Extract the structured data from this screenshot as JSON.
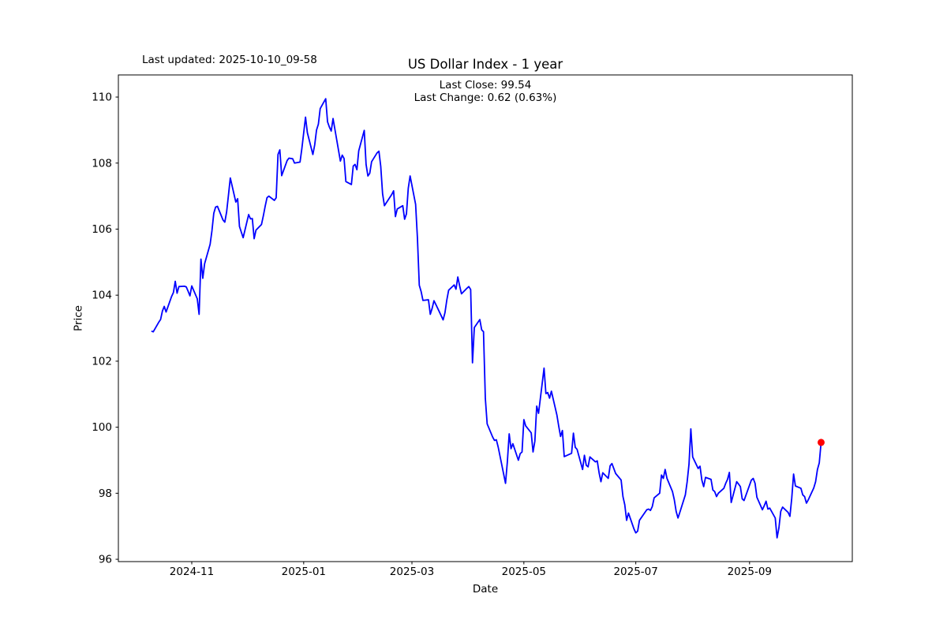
{
  "figure": {
    "title": "US Dollar Index - 1 year",
    "annotation": "Last updated: 2025-10-10_09-58",
    "subtitle_line1": "Last Close: 99.54",
    "subtitle_line2": "Last Change: 0.62 (0.63%)",
    "xlabel": "Date",
    "ylabel": "Price"
  },
  "chart_data": {
    "type": "line",
    "title": "US Dollar Index - 1 year",
    "xlabel": "Date",
    "ylabel": "Price",
    "last_close": 99.54,
    "last_change": "0.62 (0.63%)",
    "legend": "none",
    "grid": false,
    "line_color": "#0000ff",
    "marker_color": "#ff0000",
    "axis_color": "#000000",
    "xlim": [
      "2024-09-22",
      "2025-10-27"
    ],
    "ylim": [
      95.93,
      110.67
    ],
    "y_ticks": [
      96,
      98,
      100,
      102,
      104,
      106,
      108,
      110
    ],
    "x_ticks": [
      {
        "label": "2024-11",
        "date": "2024-11-01"
      },
      {
        "label": "2025-01",
        "date": "2025-01-01"
      },
      {
        "label": "2025-03",
        "date": "2025-03-01"
      },
      {
        "label": "2025-05",
        "date": "2025-05-01"
      },
      {
        "label": "2025-07",
        "date": "2025-07-01"
      },
      {
        "label": "2025-09",
        "date": "2025-09-01"
      }
    ],
    "series": [
      {
        "name": "US Dollar Index",
        "dates": [
          "2024-10-10",
          "2024-10-11",
          "2024-10-14",
          "2024-10-15",
          "2024-10-16",
          "2024-10-17",
          "2024-10-18",
          "2024-10-21",
          "2024-10-22",
          "2024-10-23",
          "2024-10-24",
          "2024-10-25",
          "2024-10-28",
          "2024-10-29",
          "2024-10-30",
          "2024-10-31",
          "2024-11-01",
          "2024-11-04",
          "2024-11-05",
          "2024-11-06",
          "2024-11-07",
          "2024-11-08",
          "2024-11-11",
          "2024-11-12",
          "2024-11-13",
          "2024-11-14",
          "2024-11-15",
          "2024-11-18",
          "2024-11-19",
          "2024-11-20",
          "2024-11-21",
          "2024-11-22",
          "2024-11-25",
          "2024-11-26",
          "2024-11-27",
          "2024-11-29",
          "2024-12-02",
          "2024-12-03",
          "2024-12-04",
          "2024-12-05",
          "2024-12-06",
          "2024-12-09",
          "2024-12-10",
          "2024-12-11",
          "2024-12-12",
          "2024-12-13",
          "2024-12-16",
          "2024-12-17",
          "2024-12-18",
          "2024-12-19",
          "2024-12-20",
          "2024-12-23",
          "2024-12-24",
          "2024-12-26",
          "2024-12-27",
          "2024-12-30",
          "2024-12-31",
          "2025-01-02",
          "2025-01-03",
          "2025-01-06",
          "2025-01-07",
          "2025-01-08",
          "2025-01-09",
          "2025-01-10",
          "2025-01-13",
          "2025-01-14",
          "2025-01-15",
          "2025-01-16",
          "2025-01-17",
          "2025-01-21",
          "2025-01-22",
          "2025-01-23",
          "2025-01-24",
          "2025-01-27",
          "2025-01-28",
          "2025-01-29",
          "2025-01-30",
          "2025-01-31",
          "2025-02-03",
          "2025-02-04",
          "2025-02-05",
          "2025-02-06",
          "2025-02-07",
          "2025-02-10",
          "2025-02-11",
          "2025-02-12",
          "2025-02-13",
          "2025-02-14",
          "2025-02-18",
          "2025-02-19",
          "2025-02-20",
          "2025-02-21",
          "2025-02-24",
          "2025-02-25",
          "2025-02-26",
          "2025-02-27",
          "2025-02-28",
          "2025-03-03",
          "2025-03-04",
          "2025-03-05",
          "2025-03-06",
          "2025-03-07",
          "2025-03-10",
          "2025-03-11",
          "2025-03-12",
          "2025-03-13",
          "2025-03-14",
          "2025-03-17",
          "2025-03-18",
          "2025-03-19",
          "2025-03-20",
          "2025-03-21",
          "2025-03-24",
          "2025-03-25",
          "2025-03-26",
          "2025-03-27",
          "2025-03-28",
          "2025-03-31",
          "2025-04-01",
          "2025-04-02",
          "2025-04-03",
          "2025-04-04",
          "2025-04-07",
          "2025-04-08",
          "2025-04-09",
          "2025-04-10",
          "2025-04-11",
          "2025-04-14",
          "2025-04-15",
          "2025-04-16",
          "2025-04-17",
          "2025-04-21",
          "2025-04-22",
          "2025-04-23",
          "2025-04-24",
          "2025-04-25",
          "2025-04-28",
          "2025-04-29",
          "2025-04-30",
          "2025-05-01",
          "2025-05-02",
          "2025-05-05",
          "2025-05-06",
          "2025-05-07",
          "2025-05-08",
          "2025-05-09",
          "2025-05-12",
          "2025-05-13",
          "2025-05-14",
          "2025-05-15",
          "2025-05-16",
          "2025-05-19",
          "2025-05-20",
          "2025-05-21",
          "2025-05-22",
          "2025-05-23",
          "2025-05-27",
          "2025-05-28",
          "2025-05-29",
          "2025-05-30",
          "2025-06-02",
          "2025-06-03",
          "2025-06-04",
          "2025-06-05",
          "2025-06-06",
          "2025-06-09",
          "2025-06-10",
          "2025-06-11",
          "2025-06-12",
          "2025-06-13",
          "2025-06-16",
          "2025-06-17",
          "2025-06-18",
          "2025-06-20",
          "2025-06-23",
          "2025-06-24",
          "2025-06-25",
          "2025-06-26",
          "2025-06-27",
          "2025-06-30",
          "2025-07-01",
          "2025-07-02",
          "2025-07-03",
          "2025-07-07",
          "2025-07-08",
          "2025-07-09",
          "2025-07-10",
          "2025-07-11",
          "2025-07-14",
          "2025-07-15",
          "2025-07-16",
          "2025-07-17",
          "2025-07-18",
          "2025-07-21",
          "2025-07-22",
          "2025-07-23",
          "2025-07-24",
          "2025-07-25",
          "2025-07-28",
          "2025-07-29",
          "2025-07-30",
          "2025-07-31",
          "2025-08-01",
          "2025-08-04",
          "2025-08-05",
          "2025-08-06",
          "2025-08-07",
          "2025-08-08",
          "2025-08-11",
          "2025-08-12",
          "2025-08-13",
          "2025-08-14",
          "2025-08-15",
          "2025-08-18",
          "2025-08-19",
          "2025-08-20",
          "2025-08-21",
          "2025-08-22",
          "2025-08-25",
          "2025-08-26",
          "2025-08-27",
          "2025-08-28",
          "2025-08-29",
          "2025-09-02",
          "2025-09-03",
          "2025-09-04",
          "2025-09-05",
          "2025-09-08",
          "2025-09-09",
          "2025-09-10",
          "2025-09-11",
          "2025-09-12",
          "2025-09-15",
          "2025-09-16",
          "2025-09-17",
          "2025-09-18",
          "2025-09-19",
          "2025-09-22",
          "2025-09-23",
          "2025-09-24",
          "2025-09-25",
          "2025-09-26",
          "2025-09-29",
          "2025-09-30",
          "2025-10-01",
          "2025-10-02",
          "2025-10-03",
          "2025-10-06",
          "2025-10-07",
          "2025-10-08",
          "2025-10-09",
          "2025-10-10"
        ],
        "values": [
          102.91,
          102.89,
          103.18,
          103.26,
          103.52,
          103.66,
          103.49,
          103.96,
          104.08,
          104.42,
          104.06,
          104.26,
          104.27,
          104.25,
          104.12,
          103.98,
          104.28,
          103.89,
          103.42,
          105.09,
          104.51,
          104.95,
          105.54,
          105.95,
          106.48,
          106.67,
          106.69,
          106.28,
          106.21,
          106.52,
          107.03,
          107.55,
          106.82,
          106.92,
          106.08,
          105.74,
          106.44,
          106.31,
          106.32,
          105.71,
          105.97,
          106.14,
          106.4,
          106.69,
          106.95,
          107.0,
          106.87,
          106.95,
          108.26,
          108.4,
          107.62,
          108.08,
          108.15,
          108.13,
          108.0,
          108.03,
          108.44,
          109.39,
          108.92,
          108.26,
          108.55,
          109.0,
          109.18,
          109.65,
          109.95,
          109.25,
          109.09,
          108.97,
          109.35,
          108.06,
          108.24,
          108.14,
          107.44,
          107.35,
          107.91,
          107.96,
          107.8,
          108.37,
          108.99,
          107.96,
          107.61,
          107.69,
          108.04,
          108.31,
          108.36,
          107.9,
          107.07,
          106.71,
          107.05,
          107.16,
          106.38,
          106.61,
          106.71,
          106.3,
          106.46,
          107.24,
          107.61,
          106.75,
          105.72,
          104.3,
          104.11,
          103.84,
          103.86,
          103.42,
          103.6,
          103.83,
          103.72,
          103.37,
          103.25,
          103.47,
          103.85,
          104.15,
          104.31,
          104.18,
          104.55,
          104.28,
          104.04,
          104.21,
          104.26,
          104.17,
          101.95,
          103.02,
          103.26,
          102.95,
          102.89,
          100.87,
          100.1,
          99.7,
          99.6,
          99.62,
          99.4,
          98.3,
          98.95,
          99.8,
          99.35,
          99.5,
          99.0,
          99.2,
          99.25,
          100.23,
          100.04,
          99.83,
          99.25,
          99.58,
          100.64,
          100.42,
          101.79,
          101.02,
          101.05,
          100.88,
          101.09,
          100.37,
          100.03,
          99.72,
          99.9,
          99.11,
          99.21,
          99.82,
          99.39,
          99.33,
          98.72,
          99.15,
          98.85,
          98.8,
          99.1,
          98.95,
          98.98,
          98.62,
          98.35,
          98.62,
          98.45,
          98.83,
          98.9,
          98.6,
          98.4,
          97.9,
          97.65,
          97.18,
          97.4,
          96.92,
          96.8,
          96.85,
          97.18,
          97.5,
          97.52,
          97.48,
          97.6,
          97.86,
          98.0,
          98.55,
          98.45,
          98.72,
          98.45,
          98.05,
          97.8,
          97.45,
          97.25,
          97.42,
          97.95,
          98.35,
          98.88,
          99.95,
          99.1,
          98.75,
          98.82,
          98.4,
          98.2,
          98.48,
          98.42,
          98.1,
          98.05,
          97.9,
          98.0,
          98.15,
          98.3,
          98.42,
          98.63,
          97.72,
          98.35,
          98.28,
          98.2,
          97.83,
          97.78,
          98.4,
          98.45,
          98.3,
          97.88,
          97.5,
          97.62,
          97.76,
          97.52,
          97.55,
          97.25,
          96.65,
          96.95,
          97.45,
          97.58,
          97.42,
          97.3,
          97.85,
          98.58,
          98.22,
          98.15,
          97.95,
          97.9,
          97.7,
          97.8,
          98.16,
          98.35,
          98.72,
          98.92,
          99.54
        ]
      }
    ],
    "last_point_marker": {
      "date": "2025-10-10",
      "value": 99.54
    }
  }
}
